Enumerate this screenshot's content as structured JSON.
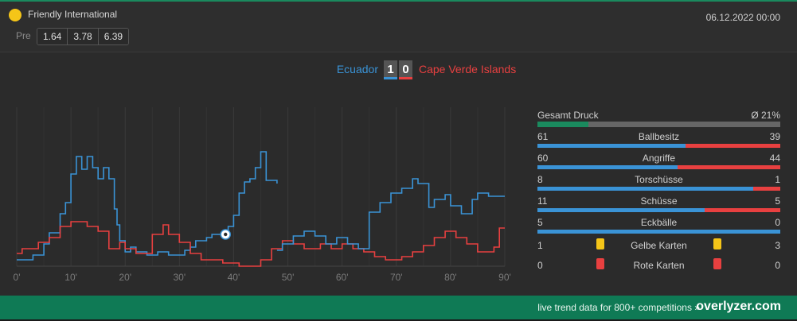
{
  "header": {
    "league_name": "Friendly International",
    "datetime": "06.12.2022 00:00",
    "pre_label": "Pre",
    "odds": [
      "1.64",
      "3.78",
      "6.39"
    ],
    "league_icon_color": "#f5c518"
  },
  "match": {
    "home_team": "Ecuador",
    "away_team": "Cape Verde Islands",
    "home_score": "1",
    "away_score": "0",
    "home_color": "#3a93d6",
    "away_color": "#e84040"
  },
  "chart_data": {
    "type": "line",
    "xlabel": "",
    "ylabel": "",
    "x_ticks": [
      "0'",
      "10'",
      "20'",
      "30'",
      "40'",
      "50'",
      "60'",
      "70'",
      "80'",
      "90'"
    ],
    "xlim": [
      0,
      90
    ],
    "ylim": [
      0,
      100
    ],
    "grid": true,
    "goal_marker": {
      "team": "Ecuador",
      "minute": 38.5,
      "icon": "soccer-ball-icon"
    },
    "series": [
      {
        "name": "Ecuador",
        "color": "#3a93d6",
        "points": [
          [
            0,
            4
          ],
          [
            3,
            4
          ],
          [
            3,
            7
          ],
          [
            5,
            7
          ],
          [
            5,
            14
          ],
          [
            6,
            14
          ],
          [
            6,
            21
          ],
          [
            8,
            21
          ],
          [
            8,
            33
          ],
          [
            9,
            33
          ],
          [
            9,
            40
          ],
          [
            10,
            40
          ],
          [
            10,
            58
          ],
          [
            11,
            58
          ],
          [
            11,
            69
          ],
          [
            12,
            69
          ],
          [
            12,
            61
          ],
          [
            13,
            61
          ],
          [
            13,
            69
          ],
          [
            14,
            69
          ],
          [
            14,
            62
          ],
          [
            15,
            62
          ],
          [
            15,
            55
          ],
          [
            16,
            55
          ],
          [
            16,
            62
          ],
          [
            17,
            62
          ],
          [
            17,
            55
          ],
          [
            18,
            55
          ],
          [
            18,
            36
          ],
          [
            18.5,
            36
          ],
          [
            18.5,
            26
          ],
          [
            19,
            26
          ],
          [
            19,
            16
          ],
          [
            20,
            16
          ],
          [
            20,
            9
          ],
          [
            21,
            9
          ],
          [
            21,
            12
          ],
          [
            22,
            12
          ],
          [
            22,
            9
          ],
          [
            24,
            9
          ],
          [
            24,
            7
          ],
          [
            26,
            7
          ],
          [
            26,
            9
          ],
          [
            28,
            9
          ],
          [
            28,
            7
          ],
          [
            31,
            7
          ],
          [
            31,
            10
          ],
          [
            32,
            10
          ],
          [
            32,
            12
          ],
          [
            33,
            12
          ],
          [
            33,
            16
          ],
          [
            35,
            16
          ],
          [
            35,
            18
          ],
          [
            36,
            18
          ],
          [
            36,
            20
          ],
          [
            38,
            20
          ],
          [
            38,
            18
          ],
          [
            39,
            18
          ],
          [
            39,
            25
          ],
          [
            40,
            25
          ],
          [
            40,
            32
          ],
          [
            41,
            32
          ],
          [
            41,
            46
          ],
          [
            42,
            46
          ],
          [
            42,
            53
          ],
          [
            43,
            53
          ],
          [
            43,
            55
          ],
          [
            44,
            55
          ],
          [
            44,
            62
          ],
          [
            45,
            62
          ],
          [
            45,
            72
          ],
          [
            46,
            72
          ],
          [
            46,
            54
          ],
          [
            48,
            54
          ],
          [
            48,
            52
          ]
        ]
      },
      {
        "name": "Cape Verde Islands",
        "color": "#e84040",
        "points": [
          [
            0,
            8
          ],
          [
            1,
            8
          ],
          [
            1,
            11
          ],
          [
            4,
            11
          ],
          [
            4,
            15
          ],
          [
            6,
            15
          ],
          [
            6,
            18
          ],
          [
            8,
            18
          ],
          [
            8,
            25
          ],
          [
            10,
            25
          ],
          [
            10,
            28
          ],
          [
            13,
            28
          ],
          [
            13,
            25
          ],
          [
            15,
            25
          ],
          [
            15,
            22
          ],
          [
            17,
            22
          ],
          [
            17,
            11
          ],
          [
            19,
            11
          ],
          [
            19,
            15
          ],
          [
            20,
            15
          ],
          [
            20,
            11
          ],
          [
            22,
            11
          ],
          [
            22,
            8
          ],
          [
            25,
            8
          ],
          [
            25,
            20
          ],
          [
            27,
            20
          ],
          [
            27,
            26
          ],
          [
            28,
            26
          ],
          [
            28,
            20
          ],
          [
            30,
            20
          ],
          [
            30,
            15
          ],
          [
            32,
            15
          ],
          [
            32,
            8
          ],
          [
            34,
            8
          ],
          [
            34,
            4
          ],
          [
            38,
            4
          ],
          [
            38,
            2
          ],
          [
            41,
            2
          ],
          [
            41,
            0
          ],
          [
            45,
            0
          ],
          [
            45,
            4
          ],
          [
            47,
            4
          ],
          [
            47,
            11
          ],
          [
            49,
            11
          ],
          [
            49,
            16
          ],
          [
            51,
            16
          ],
          [
            51,
            14
          ],
          [
            53,
            14
          ],
          [
            53,
            11
          ],
          [
            56,
            11
          ],
          [
            56,
            14
          ],
          [
            58,
            14
          ],
          [
            58,
            11
          ],
          [
            60,
            11
          ],
          [
            60,
            14
          ],
          [
            62,
            14
          ],
          [
            62,
            11
          ],
          [
            64,
            11
          ],
          [
            64,
            9
          ],
          [
            66,
            9
          ],
          [
            66,
            6
          ],
          [
            68,
            6
          ],
          [
            68,
            4
          ],
          [
            71,
            4
          ],
          [
            71,
            6
          ],
          [
            73,
            6
          ],
          [
            73,
            9
          ],
          [
            75,
            9
          ],
          [
            75,
            13
          ],
          [
            77,
            13
          ],
          [
            77,
            18
          ],
          [
            79,
            18
          ],
          [
            79,
            22
          ],
          [
            81,
            22
          ],
          [
            81,
            18
          ],
          [
            83,
            18
          ],
          [
            83,
            14
          ],
          [
            85,
            14
          ],
          [
            85,
            9
          ],
          [
            88,
            9
          ],
          [
            88,
            12
          ],
          [
            89,
            12
          ],
          [
            89,
            24
          ],
          [
            90,
            24
          ]
        ]
      },
      {
        "name": "Ecuador",
        "color": "#3a93d6",
        "points": [
          [
            48,
            10
          ],
          [
            49,
            10
          ],
          [
            49,
            14
          ],
          [
            51,
            14
          ],
          [
            51,
            19
          ],
          [
            53,
            19
          ],
          [
            53,
            22
          ],
          [
            55,
            22
          ],
          [
            55,
            19
          ],
          [
            57,
            19
          ],
          [
            57,
            14
          ],
          [
            59,
            14
          ],
          [
            59,
            18
          ],
          [
            61,
            18
          ],
          [
            61,
            14
          ],
          [
            63,
            14
          ],
          [
            63,
            11
          ],
          [
            64,
            11
          ],
          [
            64,
            11
          ],
          [
            65,
            11
          ],
          [
            65,
            34
          ],
          [
            67,
            34
          ],
          [
            67,
            40
          ],
          [
            69,
            40
          ],
          [
            69,
            46
          ],
          [
            71,
            46
          ],
          [
            71,
            49
          ],
          [
            73,
            49
          ],
          [
            73,
            55
          ],
          [
            74,
            55
          ],
          [
            74,
            52
          ],
          [
            76,
            52
          ],
          [
            76,
            37
          ],
          [
            77,
            37
          ],
          [
            77,
            42
          ],
          [
            79,
            42
          ],
          [
            79,
            45
          ],
          [
            80,
            45
          ],
          [
            80,
            38
          ],
          [
            82,
            38
          ],
          [
            82,
            33
          ],
          [
            84,
            33
          ],
          [
            84,
            42
          ],
          [
            85,
            42
          ],
          [
            85,
            46
          ],
          [
            87,
            46
          ],
          [
            87,
            44
          ],
          [
            88,
            44
          ],
          [
            88,
            44
          ],
          [
            90,
            44
          ]
        ]
      }
    ]
  },
  "stats": {
    "pressure": {
      "label": "Gesamt Druck",
      "value": "Ø 21%",
      "fraction": 0.21
    },
    "rows": [
      {
        "label": "Ballbesitz",
        "home": "61",
        "away": "39",
        "home_frac": 0.61
      },
      {
        "label": "Angriffe",
        "home": "60",
        "away": "44",
        "home_frac": 0.577
      },
      {
        "label": "Torschüsse",
        "home": "8",
        "away": "1",
        "home_frac": 0.889
      },
      {
        "label": "Schüsse",
        "home": "11",
        "away": "5",
        "home_frac": 0.6875
      },
      {
        "label": "Eckbälle",
        "home": "5",
        "away": "0",
        "home_frac": 1.0
      }
    ],
    "cards": [
      {
        "label": "Gelbe Karten",
        "home": "1",
        "away": "3",
        "color": "#f5c518"
      },
      {
        "label": "Rote Karten",
        "home": "0",
        "away": "0",
        "color": "#e84040"
      }
    ]
  },
  "footer": {
    "text": "live trend data for 800+ competitions »",
    "brand": "overlyzer.com",
    "color": "#0f7a55"
  }
}
